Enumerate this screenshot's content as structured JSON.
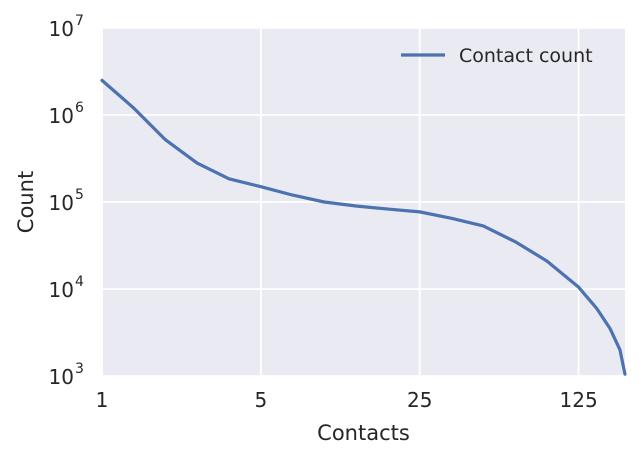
{
  "chart_data": {
    "type": "line",
    "xscale": "log5",
    "yscale": "log10",
    "xlim": [
      1,
      200
    ],
    "ylim": [
      1000,
      10000000
    ],
    "xticks": [
      {
        "value": 1,
        "label": "1"
      },
      {
        "value": 5,
        "label": "5"
      },
      {
        "value": 25,
        "label": "25"
      },
      {
        "value": 125,
        "label": "125"
      }
    ],
    "yticks": [
      {
        "value": 1000,
        "base": "10",
        "exp": "3"
      },
      {
        "value": 10000,
        "base": "10",
        "exp": "4"
      },
      {
        "value": 100000,
        "base": "10",
        "exp": "5"
      },
      {
        "value": 1000000,
        "base": "10",
        "exp": "6"
      },
      {
        "value": 10000000,
        "base": "10",
        "exp": "7"
      }
    ],
    "xlabel": "Contacts",
    "ylabel": "Count",
    "grid": true,
    "legend_position": "top-right",
    "colors": {
      "background": "#eaeaf2",
      "grid": "#ffffff",
      "line": "#4c72b0",
      "text": "#262626"
    },
    "series": [
      {
        "name": "Contact count",
        "x": [
          1,
          1.38,
          1.9,
          2.62,
          3.62,
          5,
          6.9,
          9.5,
          13.1,
          18.1,
          25,
          34.5,
          47.6,
          65.7,
          90.6,
          125,
          150,
          172,
          190,
          200
        ],
        "y": [
          2500000,
          1200000,
          520000,
          280000,
          185000,
          150000,
          120000,
          100000,
          90000,
          83000,
          77000,
          65000,
          53000,
          35000,
          21000,
          10500,
          6000,
          3500,
          2000,
          1050
        ]
      }
    ]
  }
}
